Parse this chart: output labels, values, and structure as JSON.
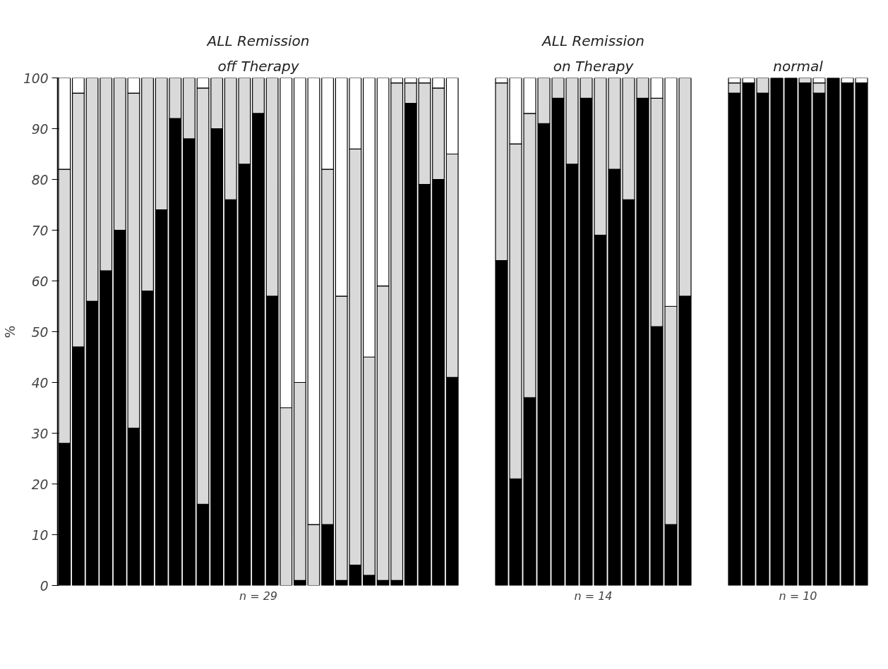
{
  "chart_data": [
    {
      "type": "bar",
      "stacked": true,
      "title": "ALL Remission",
      "subtitle": "off Therapy",
      "xlabel": "n = 29",
      "ylabel": "%",
      "ylim": [
        0,
        100
      ],
      "yticks": [
        0,
        10,
        20,
        30,
        40,
        50,
        60,
        70,
        80,
        90,
        100
      ],
      "tick_labels": "y",
      "grid": false,
      "categories": [
        null,
        null,
        null,
        null,
        null,
        null,
        null,
        null,
        null,
        null,
        null,
        null,
        null,
        null,
        null,
        null,
        null,
        null,
        null,
        null,
        null,
        null,
        null,
        null,
        null,
        null,
        null,
        null,
        null
      ],
      "series": [
        {
          "color": "#000000",
          "values": [
            28,
            47,
            56,
            62,
            70,
            31,
            58,
            74,
            92,
            88,
            16,
            90,
            76,
            83,
            93,
            57,
            0,
            1,
            0,
            12,
            1,
            4,
            2,
            1,
            1,
            95,
            79,
            80,
            41
          ]
        },
        {
          "color": "#d9d9d9",
          "values": [
            54,
            50,
            44,
            38,
            30,
            66,
            42,
            26,
            8,
            12,
            82,
            10,
            24,
            17,
            7,
            43,
            35,
            39,
            12,
            70,
            56,
            82,
            43,
            58,
            98,
            4,
            20,
            18,
            44
          ]
        },
        {
          "color": "#ffffff",
          "values": [
            18,
            3,
            0,
            0,
            0,
            3,
            0,
            0,
            0,
            0,
            2,
            0,
            0,
            0,
            0,
            0,
            65,
            60,
            88,
            18,
            43,
            14,
            55,
            41,
            1,
            1,
            1,
            2,
            15
          ]
        }
      ]
    },
    {
      "type": "bar",
      "stacked": true,
      "title": "ALL Remission",
      "subtitle": "on Therapy",
      "xlabel": "n = 14",
      "ylim": [
        0,
        100
      ],
      "tick_labels": false,
      "grid": false,
      "categories": [
        null,
        null,
        null,
        null,
        null,
        null,
        null,
        null,
        null,
        null,
        null,
        null,
        null,
        null
      ],
      "series": [
        {
          "color": "#000000",
          "values": [
            64,
            21,
            37,
            91,
            96,
            83,
            96,
            69,
            82,
            76,
            96,
            51,
            12,
            57
          ]
        },
        {
          "color": "#d9d9d9",
          "values": [
            35,
            66,
            56,
            9,
            4,
            17,
            4,
            31,
            18,
            24,
            4,
            45,
            43,
            43
          ]
        },
        {
          "color": "#ffffff",
          "values": [
            1,
            13,
            7,
            0,
            0,
            0,
            0,
            0,
            0,
            0,
            0,
            4,
            45,
            0
          ]
        }
      ]
    },
    {
      "type": "bar",
      "stacked": true,
      "title": "normal",
      "xlabel": "n = 10",
      "ylim": [
        0,
        100
      ],
      "tick_labels": false,
      "grid": false,
      "categories": [
        null,
        null,
        null,
        null,
        null,
        null,
        null,
        null,
        null,
        null
      ],
      "series": [
        {
          "color": "#000000",
          "values": [
            97,
            99,
            97,
            100,
            100,
            99,
            97,
            100,
            99,
            99
          ]
        },
        {
          "color": "#d9d9d9",
          "values": [
            2,
            0,
            3,
            0,
            0,
            1,
            2,
            0,
            0,
            0
          ]
        },
        {
          "color": "#ffffff",
          "values": [
            1,
            1,
            0,
            0,
            0,
            0,
            1,
            0,
            1,
            1
          ]
        }
      ]
    }
  ]
}
